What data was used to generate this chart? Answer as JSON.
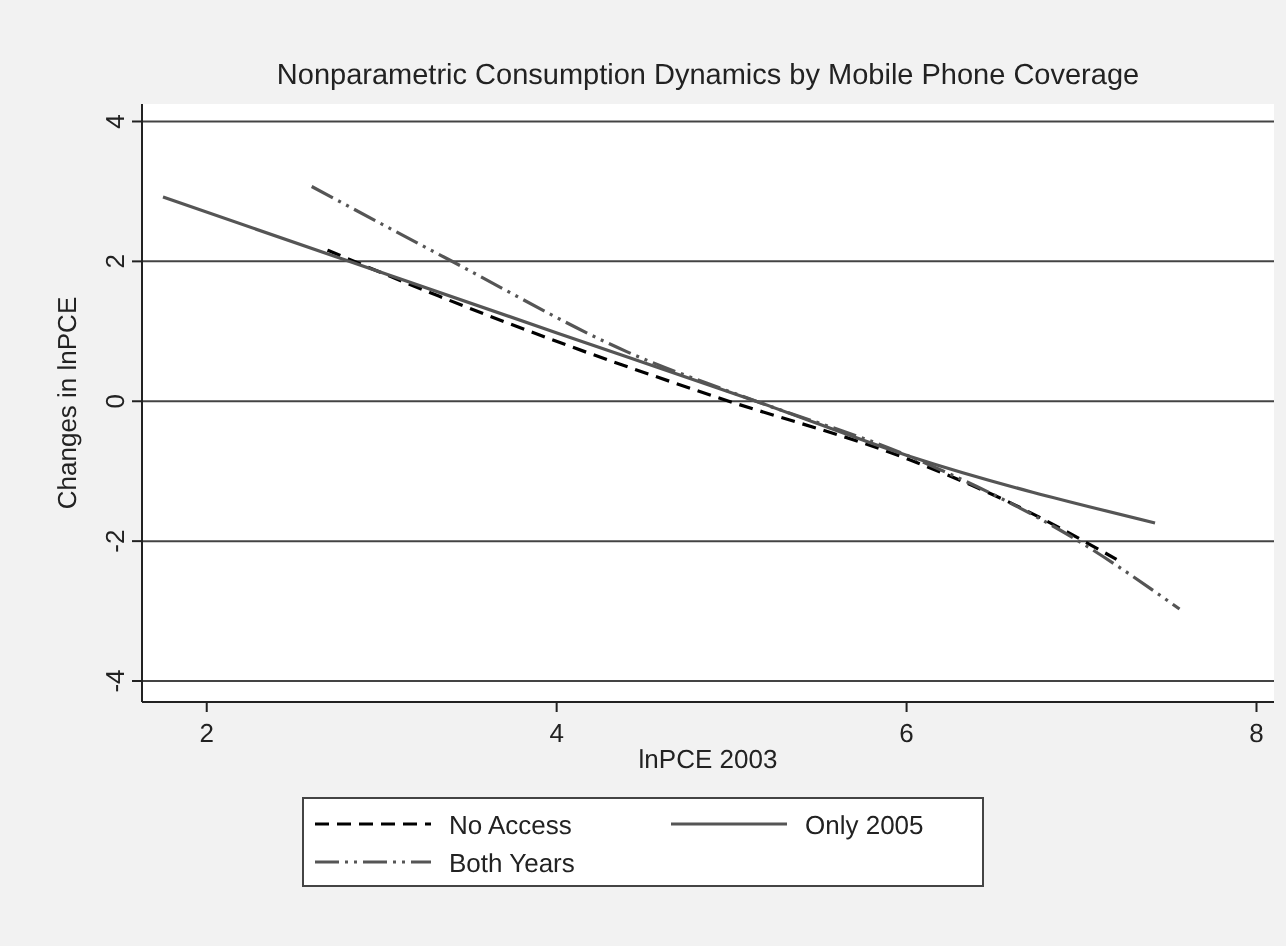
{
  "chart_data": {
    "type": "line",
    "title": "Nonparametric Consumption Dynamics by Mobile Phone Coverage",
    "xlabel": "lnPCE 2003",
    "ylabel": "Changes in lnPCE",
    "xlim": [
      1.63,
      8.1
    ],
    "ylim": [
      -4.3,
      4.25
    ],
    "xticks": [
      2,
      4,
      6,
      8
    ],
    "yticks": [
      -4,
      -2,
      0,
      2,
      4
    ],
    "grid": "y",
    "legend": "bottom",
    "series": [
      {
        "name": "No Access",
        "color": "#000000",
        "line_style": "dashed",
        "x": [
          2.69,
          3.33,
          4.05,
          4.9,
          6.01,
          6.6,
          7.2
        ],
        "values": [
          2.16,
          1.5,
          0.81,
          0.07,
          -0.83,
          -1.46,
          -2.26
        ]
      },
      {
        "name": "Only 2005",
        "color": "#555555",
        "line_style": "solid",
        "x": [
          1.75,
          2.78,
          4.01,
          5.14,
          6.02,
          7.42
        ],
        "values": [
          2.92,
          2.03,
          0.97,
          0,
          -0.79,
          -1.74
        ]
      },
      {
        "name": "Both Years",
        "color": "#555555",
        "line_style": "dotted",
        "x": [
          2.6,
          3.38,
          4.4,
          5.14,
          6.0,
          6.99,
          7.56
        ],
        "values": [
          3.07,
          2.03,
          0.71,
          0,
          -0.77,
          -2.01,
          -2.97
        ]
      }
    ]
  }
}
